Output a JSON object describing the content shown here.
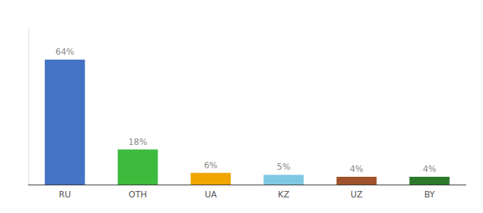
{
  "chart_data": {
    "type": "bar",
    "categories": [
      "RU",
      "OTH",
      "UA",
      "KZ",
      "UZ",
      "BY"
    ],
    "values": [
      64,
      18,
      6,
      5,
      4,
      4
    ],
    "value_labels": [
      "64%",
      "18%",
      "6%",
      "5%",
      "4%",
      "4%"
    ],
    "colors": [
      "#4472c4",
      "#3dbb3d",
      "#f0a500",
      "#7ec8e3",
      "#a0522d",
      "#2d7a2d"
    ],
    "ylim": [
      0,
      80
    ],
    "grid": false,
    "data_labels": true,
    "tick_labels": "x"
  }
}
